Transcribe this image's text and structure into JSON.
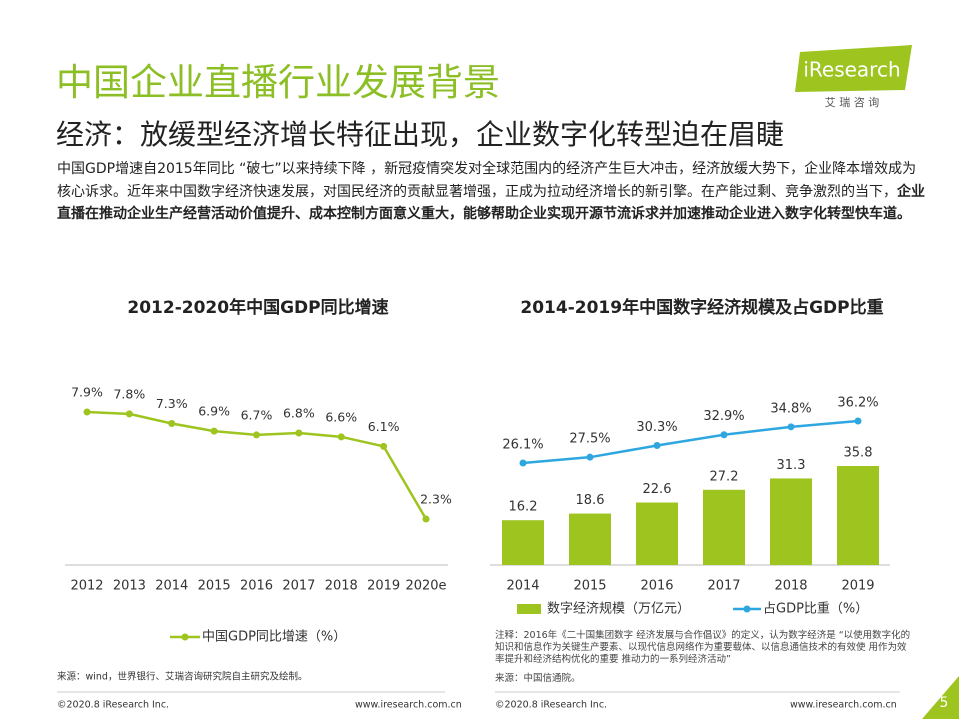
{
  "header": {
    "title": "中国企业直播行业发展背景",
    "subtitle": "经济：放缓型经济增长特征出现，企业数字化转型迫在眉睫",
    "logo": "iResearch",
    "logo_sub": "艾 瑞 咨 询"
  },
  "intro": {
    "text": "中国GDP增速自2015年同比 “破七”以来持续下降 ，新冠疫情突发对全球范围内的经济产生巨大冲击，经济放缓大势下，企业降本增效成为核心诉求。近年来中国数字经济快速发展，对国民经济的贡献显著增强，正成为拉动经济增长的新引擎。在产能过剩、竞争激烈的当下，",
    "bold": "企业直播在推动企业生产经营活动价值提升、成本控制方面意义重大，能够帮助企业实现开源节流诉求并加速推动企业进入数字化转型快车道。"
  },
  "chart_data": [
    {
      "type": "line",
      "title": "2012-2020年中国GDP同比增速",
      "categories": [
        "2012",
        "2013",
        "2014",
        "2015",
        "2016",
        "2017",
        "2018",
        "2019",
        "2020e"
      ],
      "series": [
        {
          "name": "中国GDP同比增速（%）",
          "color": "#9dc41f",
          "values": [
            7.9,
            7.8,
            7.3,
            6.9,
            6.7,
            6.8,
            6.6,
            6.1,
            2.3
          ],
          "value_labels": [
            "7.9%",
            "7.8%",
            "7.3%",
            "6.9%",
            "6.7%",
            "6.8%",
            "6.6%",
            "6.1%",
            "2.3%"
          ]
        }
      ],
      "source": "来源：wind，世界银行、艾瑞咨询研究院自主研究及绘制。"
    },
    {
      "type": "combo",
      "title": "2014-2019年中国数字经济规模及占GDP比重",
      "categories": [
        "2014",
        "2015",
        "2016",
        "2017",
        "2018",
        "2019"
      ],
      "series": [
        {
          "name": "数字经济规模（万亿元）",
          "type": "bar",
          "color": "#9dc41f",
          "values": [
            16.2,
            18.6,
            22.6,
            27.2,
            31.3,
            35.8
          ]
        },
        {
          "name": "占GDP比重（%）",
          "type": "line",
          "axis": "y2",
          "color": "#2ea7e0",
          "values": [
            26.1,
            27.5,
            30.3,
            32.9,
            34.8,
            36.2
          ],
          "value_labels": [
            "26.1%",
            "27.5%",
            "30.3%",
            "32.9%",
            "34.8%",
            "36.2%"
          ]
        }
      ],
      "note": "注释：2016年《二十国集团数字 经济发展与合作倡议》的定义，认为数字经济是 “以使用数字化的知识和信息作为关键生产要素、以现代信息网络作为重要载体、以信息通信技术的有效使 用作为效率提升和经济结构优化的重要 推动力的一系列经济活动”",
      "source": "来源：中国信通院。"
    }
  ],
  "footer": {
    "copyright_left": "©2020.8 iResearch Inc.",
    "url_left": "www.iresearch.com.cn",
    "copyright_right": "©2020.8 iResearch Inc.",
    "url_right": "www.iresearch.com.cn",
    "page": "5"
  }
}
